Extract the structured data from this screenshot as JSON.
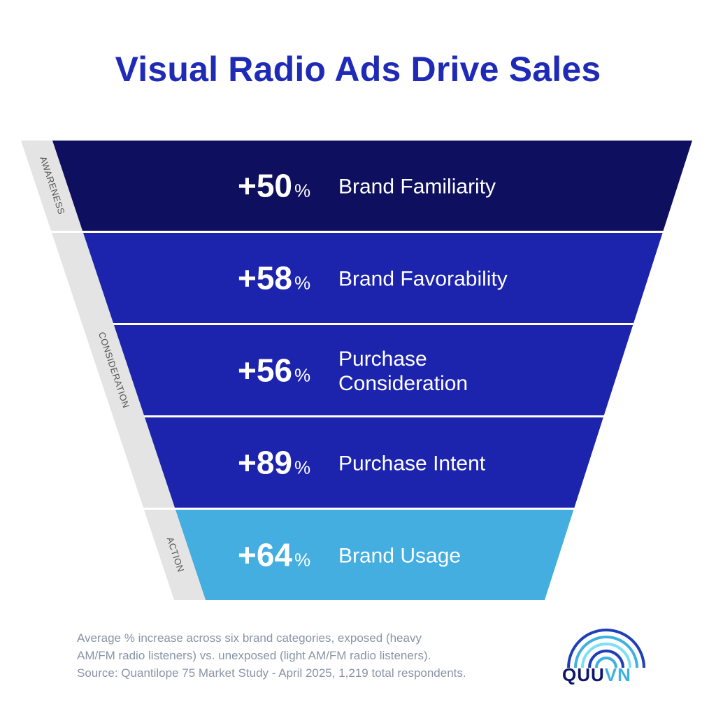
{
  "title": "Visual Radio Ads Drive Sales",
  "chart_data": {
    "type": "funnel",
    "title": "Visual Radio Ads Drive Sales",
    "stages": [
      {
        "value": "+50",
        "unit": "%",
        "label": [
          "Brand Familiarity"
        ],
        "color": "#0e0f5e"
      },
      {
        "value": "+58",
        "unit": "%",
        "label": [
          "Brand Favorability"
        ],
        "color": "#1c24ad"
      },
      {
        "value": "+56",
        "unit": "%",
        "label": [
          "Purchase",
          "Consideration"
        ],
        "color": "#1c24ad"
      },
      {
        "value": "+89",
        "unit": "%",
        "label": [
          "Purchase Intent"
        ],
        "color": "#1c24ad"
      },
      {
        "value": "+64",
        "unit": "%",
        "label": [
          "Brand Usage"
        ],
        "color": "#44aee0"
      }
    ],
    "phases": [
      {
        "label": "AWARENESS",
        "stages": [
          0
        ]
      },
      {
        "label": "CONSIDERATION",
        "stages": [
          1,
          2,
          3
        ]
      },
      {
        "label": "ACTION",
        "stages": [
          4
        ]
      }
    ]
  },
  "footnote": [
    "Average % increase across six brand categories, exposed (heavy",
    "AM/FM radio listeners) vs. unexposed (light AM/FM radio listeners).",
    "Source: Quantilope 75 Market Study - April 2025, 1,219 total respondents."
  ],
  "logo": {
    "part1": "QUU",
    "part2": "VN",
    "colors": [
      "#1f3fb8",
      "#3fb0e0",
      "#7ee0f5"
    ]
  }
}
